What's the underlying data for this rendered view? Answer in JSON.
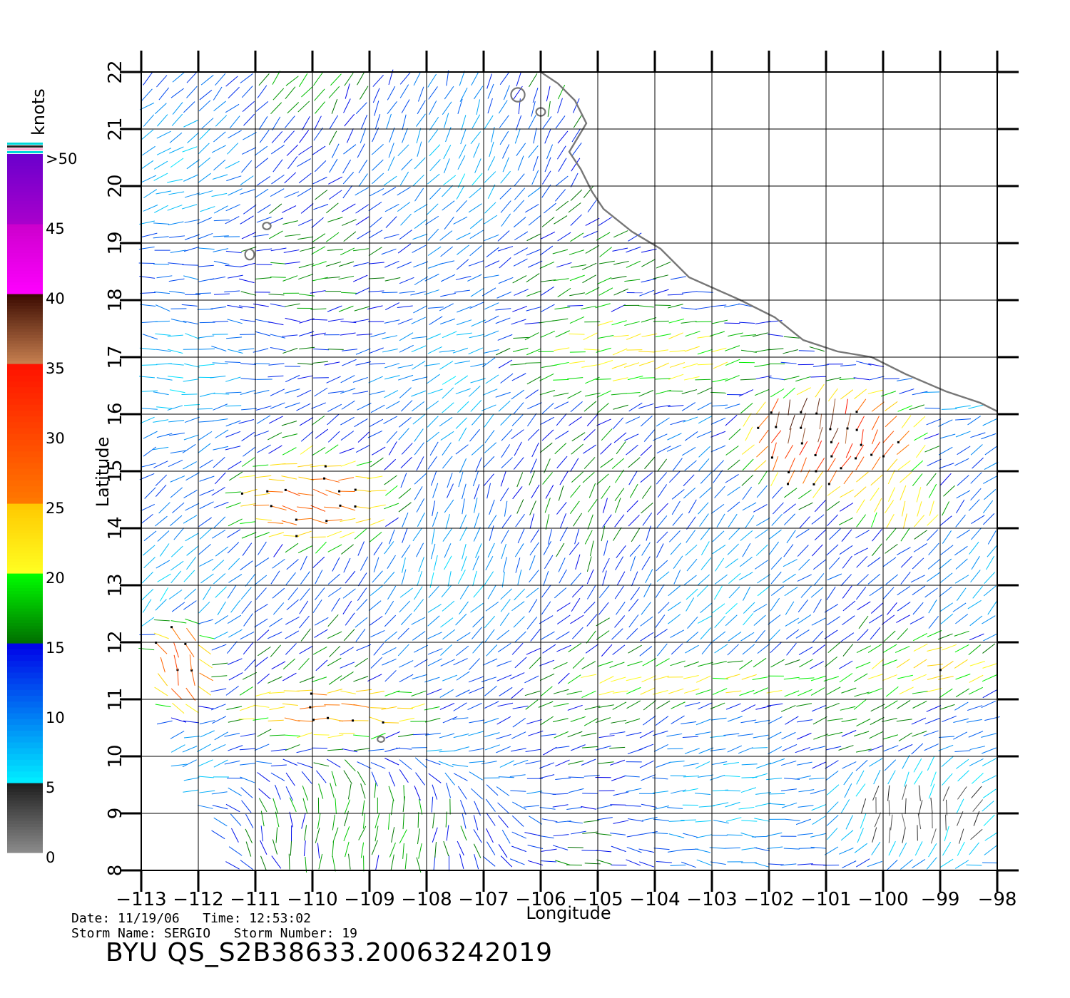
{
  "chart_data": {
    "type": "wind-vector-map",
    "xlabel": "Longitude",
    "ylabel": "Latitude",
    "xlim": [
      -113,
      -98
    ],
    "ylim": [
      8,
      22
    ],
    "x_ticks": [
      "−113",
      "−112",
      "−111",
      "−110",
      "−109",
      "−108",
      "−107",
      "−106",
      "−105",
      "−104",
      "−103",
      "−102",
      "−101",
      "−100",
      "−99",
      "−98"
    ],
    "y_ticks": [
      "8",
      "9",
      "10",
      "11",
      "12",
      "13",
      "14",
      "15",
      "16",
      "17",
      "18",
      "19",
      "20",
      "21",
      "22"
    ],
    "grid": true,
    "grid_step_deg": 1,
    "colorbar": {
      "unit": "knots",
      "labels": [
        ">50",
        "45",
        "40",
        "35",
        "30",
        "25",
        "20",
        "15",
        "10",
        "5",
        "0"
      ],
      "bands": [
        {
          "range": [
            0,
            5
          ],
          "from": "#8c8c8c",
          "to": "#1e1e1e"
        },
        {
          "range": [
            5,
            15
          ],
          "from": "#00f0ff",
          "to": "#0000e8"
        },
        {
          "range": [
            15,
            20
          ],
          "from": "#006e00",
          "to": "#00ff00"
        },
        {
          "range": [
            20,
            25
          ],
          "from": "#ffff22",
          "to": "#ffc800"
        },
        {
          "range": [
            25,
            35
          ],
          "from": "#ff7a00",
          "to": "#ff1100"
        },
        {
          "range": [
            35,
            40
          ],
          "from": "#c88050",
          "to": "#3a0a00"
        },
        {
          "range": [
            40,
            45
          ],
          "from": "#ff00ff",
          "to": "#cc00cc"
        },
        {
          "range": [
            45,
            50
          ],
          "from": "#aa00cc",
          "to": "#6a00cc"
        }
      ],
      "top_stripes": [
        "#00d8d8",
        "#1e1e1e",
        "#ffaad4",
        "#00d8d8"
      ]
    },
    "wind_field": {
      "grid_spacing_deg": 0.25,
      "swath_edges": [
        {
          "side": "west",
          "points": [
            [
              -113,
              22
            ],
            [
              -113,
              12.3
            ],
            [
              -112.5,
              10
            ],
            [
              -111.3,
              8
            ]
          ]
        }
      ],
      "fallback_speed_kt": 12,
      "speed_regions": [
        {
          "name": "tehuantepec-jet",
          "center": [
            -101.0,
            15.6
          ],
          "radius": [
            1.6,
            0.9
          ],
          "speed_kt": 34,
          "dir_deg": 15
        },
        {
          "name": "jet-core",
          "center": [
            -101.2,
            15.9
          ],
          "radius": [
            0.7,
            0.35
          ],
          "speed_kt": 42,
          "dir_deg": 15
        },
        {
          "name": "coastal-flow",
          "center": [
            -104.0,
            17.0
          ],
          "radius": [
            2.5,
            0.8
          ],
          "speed_kt": 22,
          "dir_deg": 80
        },
        {
          "name": "storm-sergio",
          "center": [
            -110.0,
            14.5
          ],
          "radius": [
            1.4,
            0.8
          ],
          "speed_kt": 28,
          "dir_deg": 110
        },
        {
          "name": "band-11n",
          "center": [
            -109.5,
            10.8
          ],
          "radius": [
            1.8,
            0.45
          ],
          "speed_kt": 27,
          "dir_deg": 100
        },
        {
          "name": "band-11n-east",
          "center": [
            -103.0,
            11.3
          ],
          "radius": [
            2.2,
            0.4
          ],
          "speed_kt": 22,
          "dir_deg": 80
        },
        {
          "name": "southeast-calm",
          "center": [
            -99.5,
            9.0
          ],
          "radius": [
            1.6,
            1.0
          ],
          "speed_kt": 3,
          "dir_deg": 0
        },
        {
          "name": "southwest-flow",
          "center": [
            -109.0,
            8.7
          ],
          "radius": [
            2.5,
            1.2
          ],
          "speed_kt": 17,
          "dir_deg": 200
        },
        {
          "name": "east-band",
          "center": [
            -99.0,
            11.6
          ],
          "radius": [
            1.2,
            0.6
          ],
          "speed_kt": 23,
          "dir_deg": 70
        },
        {
          "name": "east-cell",
          "center": [
            -99.6,
            14.4
          ],
          "radius": [
            0.8,
            0.5
          ],
          "speed_kt": 24,
          "dir_deg": 20
        },
        {
          "name": "far-west-cell",
          "center": [
            -112.3,
            11.6
          ],
          "radius": [
            0.6,
            0.9
          ],
          "speed_kt": 30,
          "dir_deg": 170
        }
      ]
    },
    "coastline": [
      [
        -106.0,
        22.0
      ],
      [
        -105.7,
        21.8
      ],
      [
        -105.4,
        21.5
      ],
      [
        -105.2,
        21.1
      ],
      [
        -105.5,
        20.6
      ],
      [
        -105.3,
        20.3
      ],
      [
        -105.1,
        19.9
      ],
      [
        -104.9,
        19.6
      ],
      [
        -104.4,
        19.2
      ],
      [
        -103.9,
        18.9
      ],
      [
        -103.4,
        18.4
      ],
      [
        -102.5,
        18.0
      ],
      [
        -101.9,
        17.7
      ],
      [
        -101.4,
        17.3
      ],
      [
        -100.8,
        17.1
      ],
      [
        -100.2,
        17.0
      ],
      [
        -99.6,
        16.7
      ],
      [
        -98.9,
        16.4
      ],
      [
        -98.3,
        16.2
      ],
      [
        -98.0,
        16.05
      ]
    ],
    "islands": [
      {
        "center": [
          -106.4,
          21.6
        ],
        "radius": [
          0.12,
          0.12
        ]
      },
      {
        "center": [
          -106.0,
          21.3
        ],
        "radius": [
          0.08,
          0.07
        ]
      },
      {
        "center": [
          -110.8,
          19.3
        ],
        "radius": [
          0.07,
          0.06
        ]
      },
      {
        "center": [
          -111.1,
          18.8
        ],
        "radius": [
          0.08,
          0.09
        ]
      },
      {
        "center": [
          -108.8,
          10.3
        ],
        "radius": [
          0.06,
          0.05
        ]
      }
    ]
  },
  "meta": {
    "date_line": "Date: 11/19/06   Time: 12:53:02",
    "storm_line": "Storm Name: SERGIO   Storm Number: 19",
    "product_id": "BYU QS_S2B38633.20063242019"
  }
}
